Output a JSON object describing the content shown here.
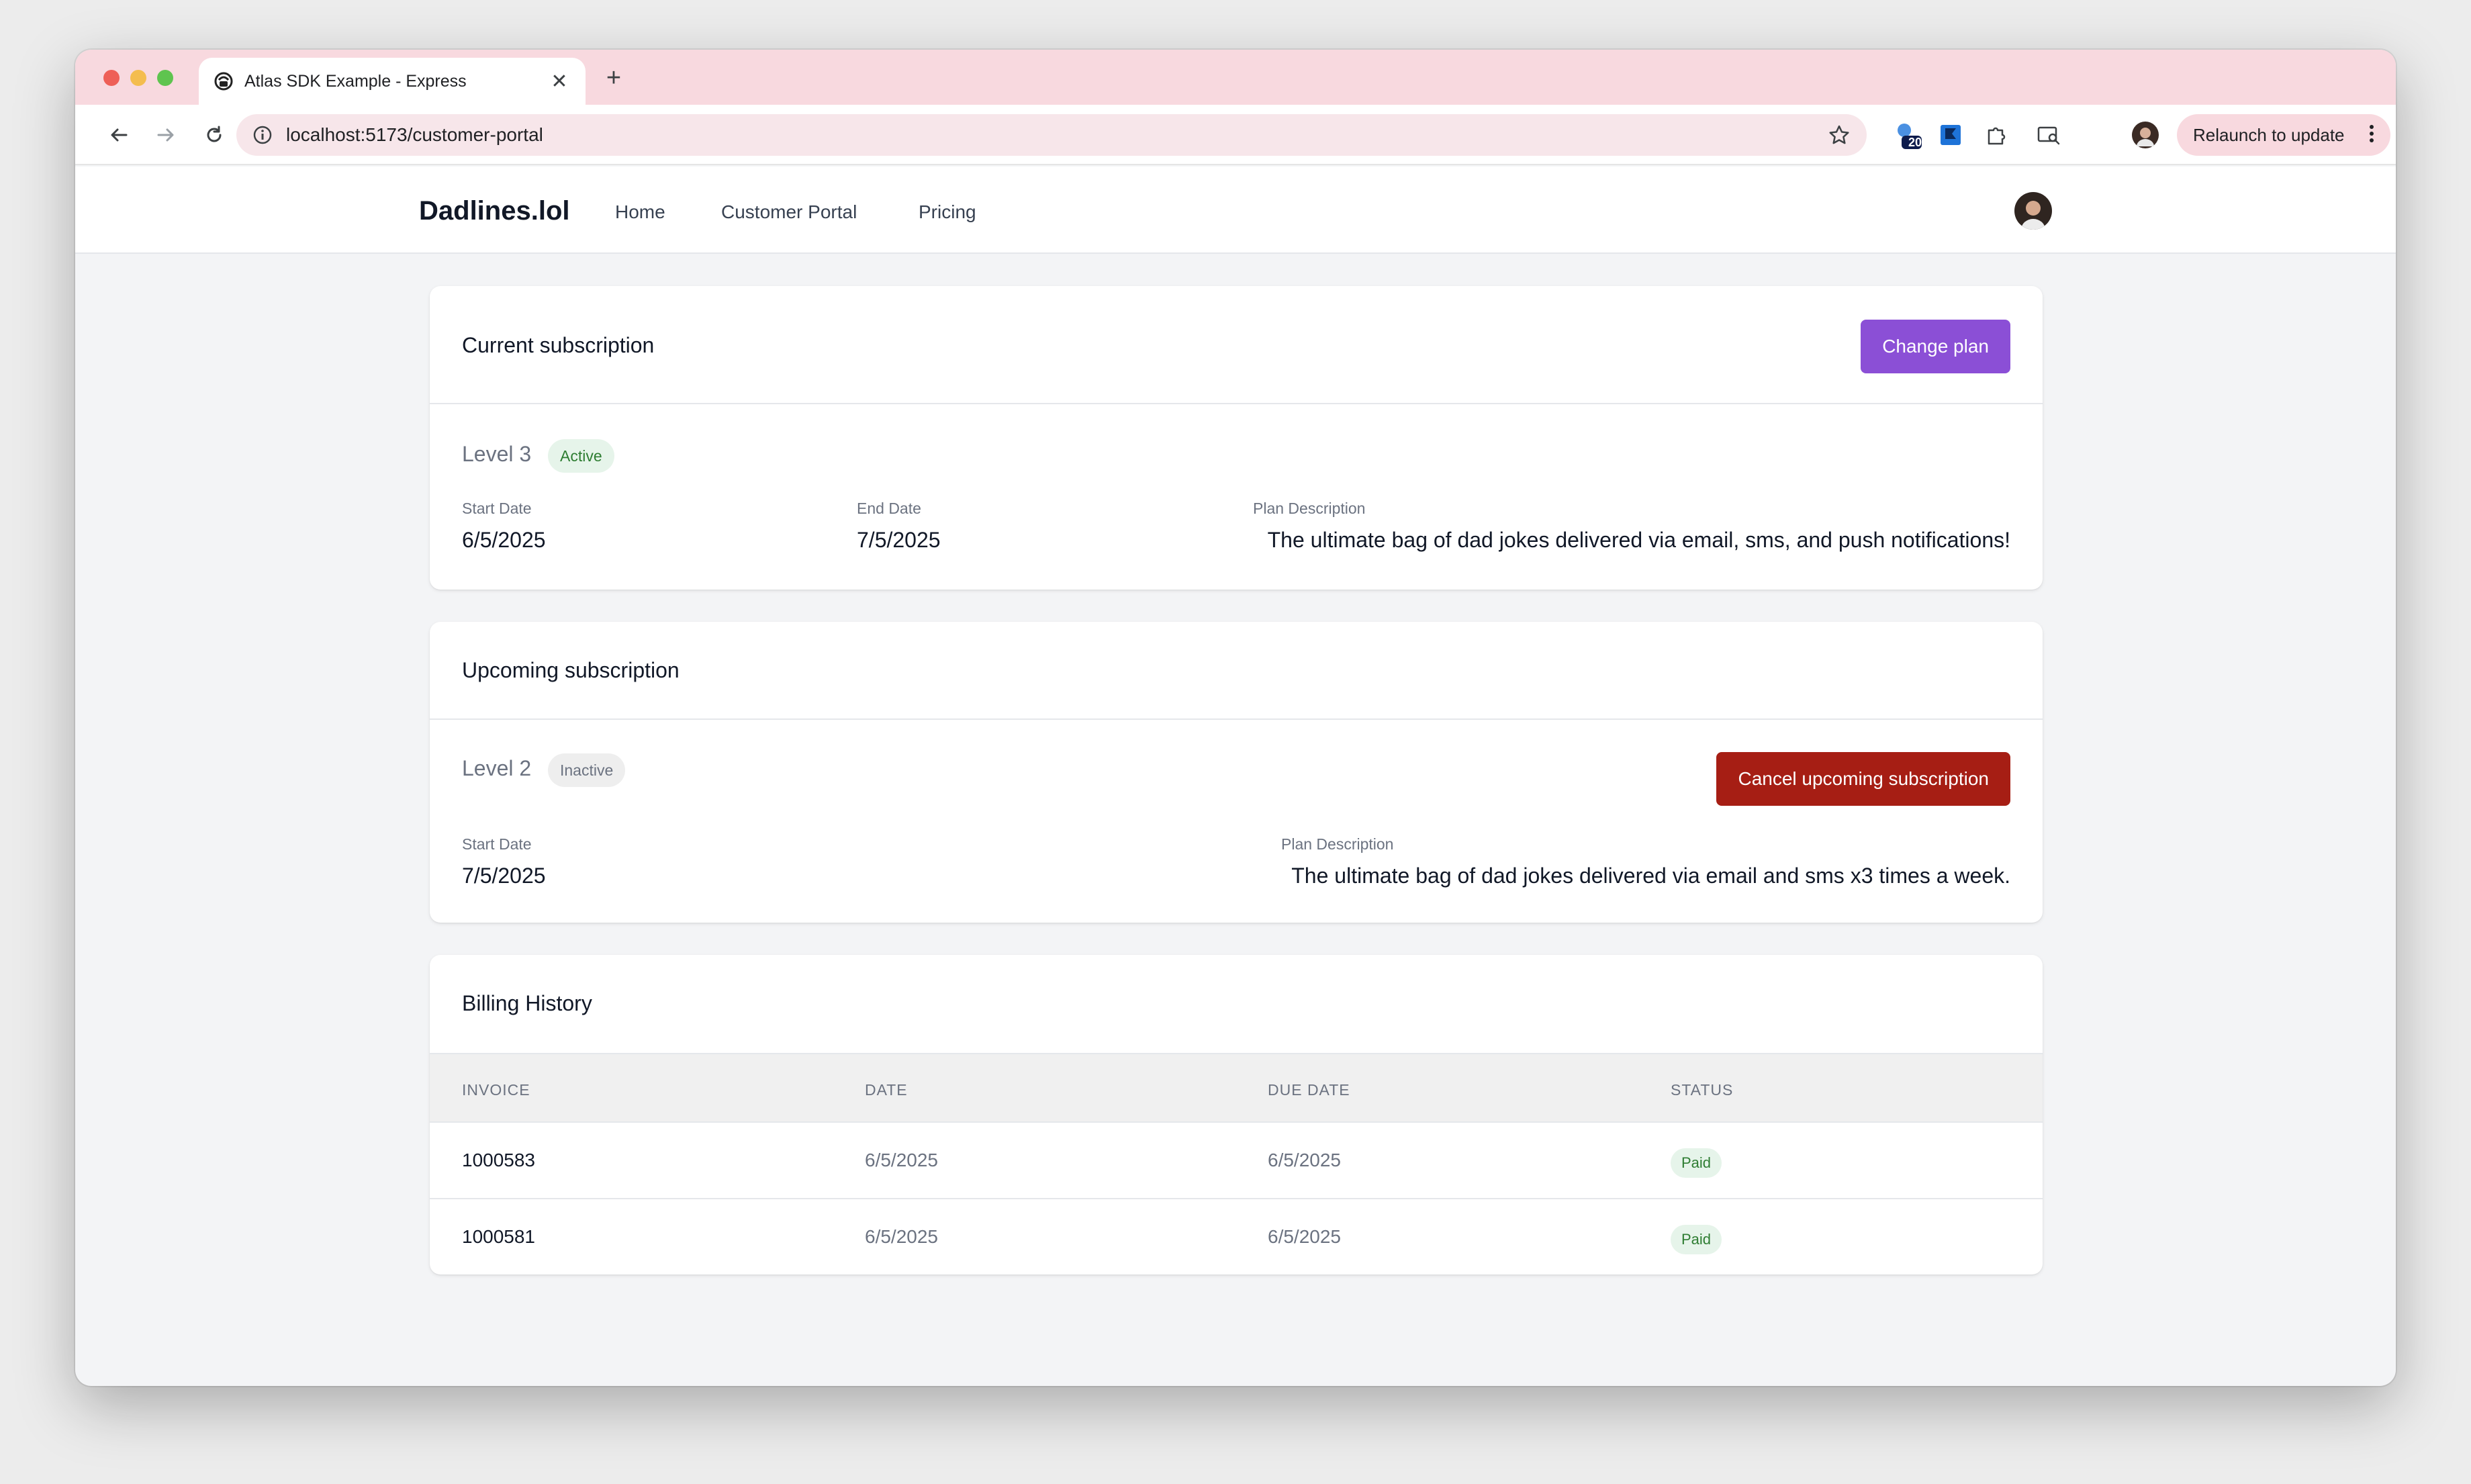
{
  "browser": {
    "tab_title": "Atlas SDK Example - Express",
    "tab_close": "✕",
    "new_tab": "+",
    "url": "localhost:5173/customer-portal",
    "extension_badge": "20",
    "relaunch_label": "Relaunch to update",
    "icons": [
      "back-arrow-icon",
      "forward-arrow-icon",
      "reload-icon",
      "site-info-icon",
      "bookmark-star-icon",
      "extension-icon",
      "puzzle-icon",
      "search-tab-icon",
      "profile-icon",
      "more-vert-icon"
    ]
  },
  "app": {
    "brand": "Dadlines.lol",
    "nav": [
      "Home",
      "Customer Portal",
      "Pricing"
    ]
  },
  "current": {
    "title": "Current subscription",
    "change_plan": "Change plan",
    "level": "Level 3",
    "status": "Active",
    "start_label": "Start Date",
    "start_value": "6/5/2025",
    "end_label": "End Date",
    "end_value": "7/5/2025",
    "desc_label": "Plan Description",
    "desc_value": "The ultimate bag of dad jokes delivered via email, sms, and push notifications!"
  },
  "upcoming": {
    "title": "Upcoming subscription",
    "level": "Level 2",
    "status": "Inactive",
    "cancel": "Cancel upcoming subscription",
    "start_label": "Start Date",
    "start_value": "7/5/2025",
    "desc_label": "Plan Description",
    "desc_value": "The ultimate bag of dad jokes delivered via email and sms x3 times a week."
  },
  "billing": {
    "title": "Billing History",
    "columns": [
      "INVOICE",
      "DATE",
      "DUE DATE",
      "STATUS"
    ],
    "rows": [
      {
        "invoice": "1000583",
        "date": "6/5/2025",
        "due": "6/5/2025",
        "status": "Paid"
      },
      {
        "invoice": "1000581",
        "date": "6/5/2025",
        "due": "6/5/2025",
        "status": "Paid"
      }
    ]
  },
  "colors": {
    "tabbar": "#f8d9df",
    "primary_button": "#8b4fd6",
    "danger_button": "#a61e14",
    "success_badge": "#e6f4ea"
  }
}
